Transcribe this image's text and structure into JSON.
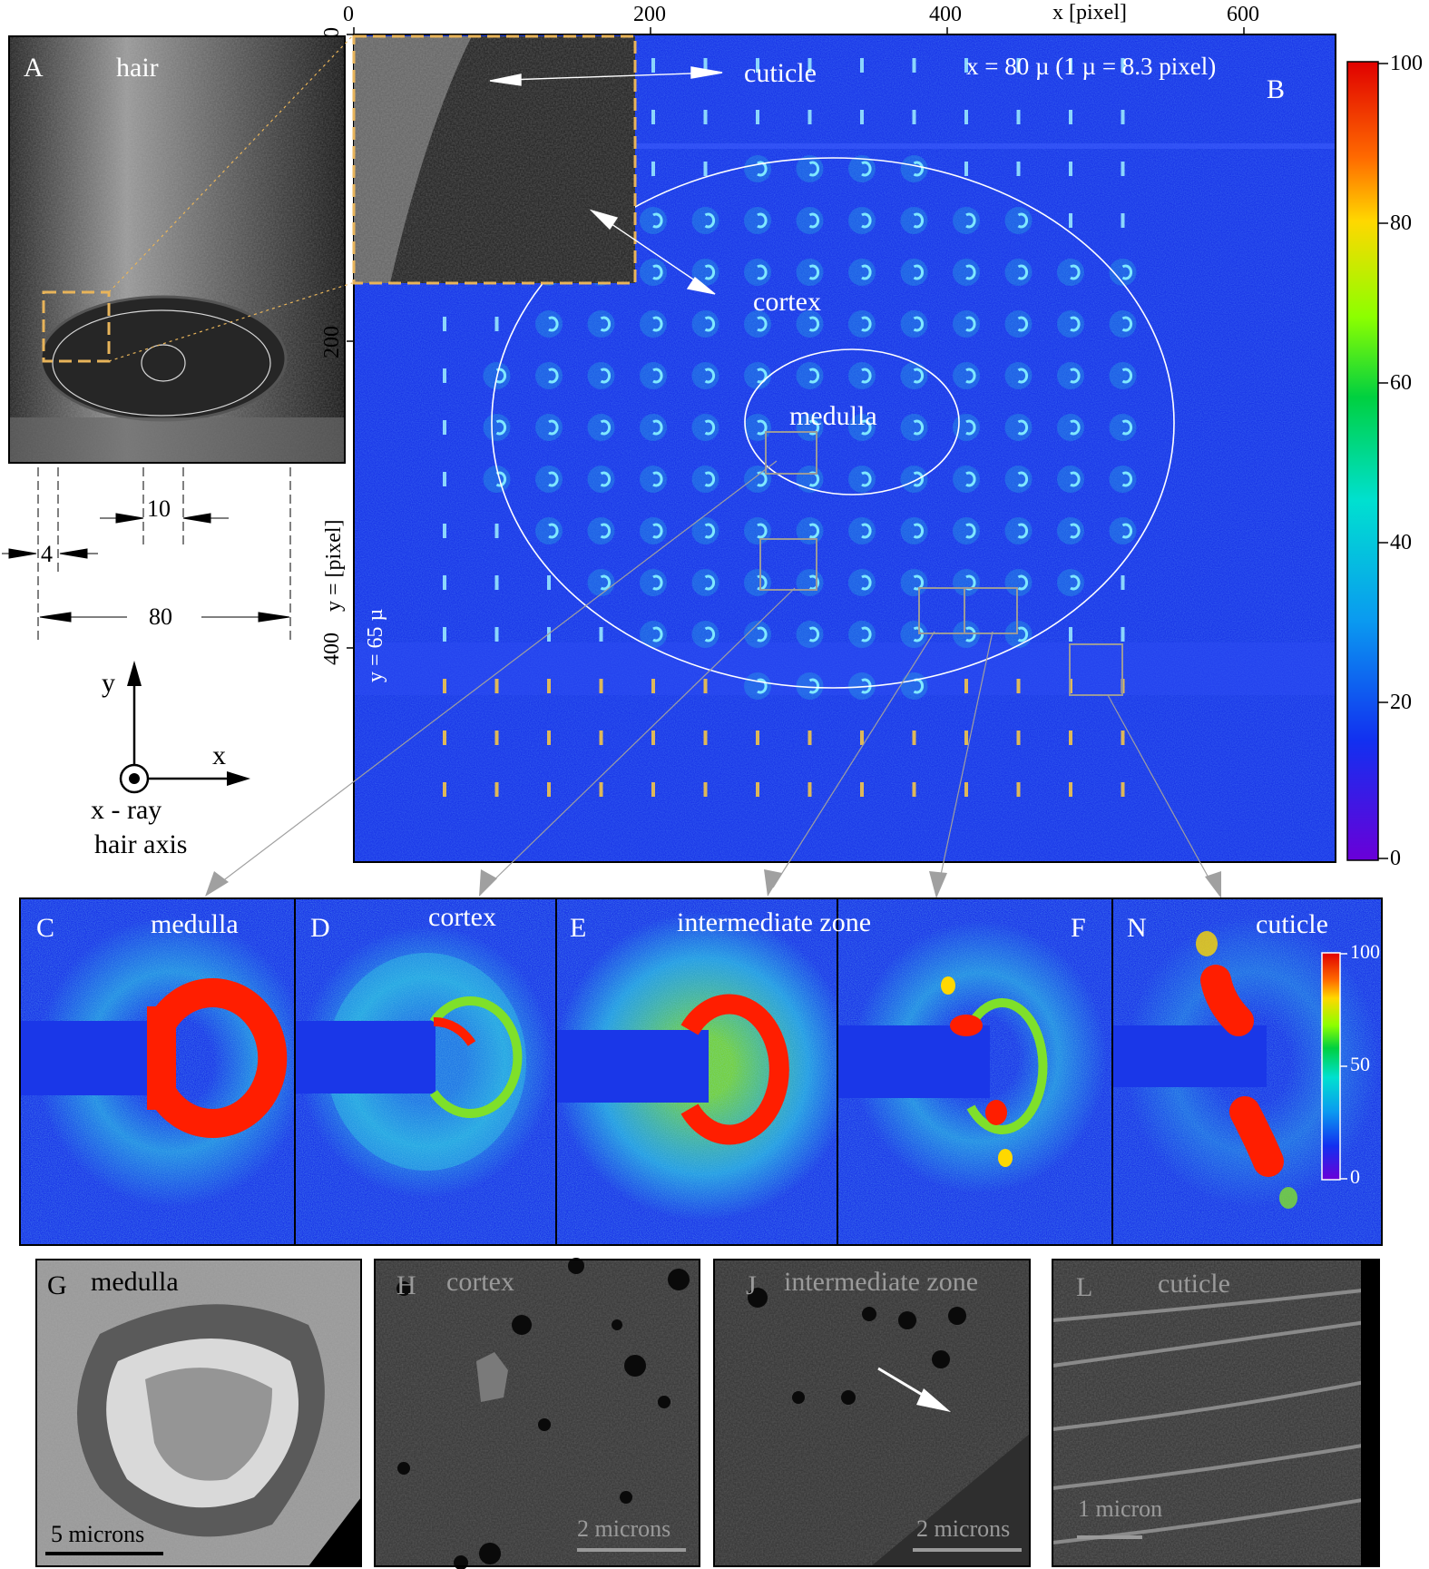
{
  "panel_A": {
    "letter": "A",
    "title": "hair",
    "dimensions": {
      "inner": "10",
      "shell": "4",
      "total": "80"
    },
    "axes": {
      "y": "y",
      "x": "x",
      "caption_line1": "x - ray",
      "caption_line2": "hair axis"
    }
  },
  "panel_B": {
    "letter": "B",
    "scale_note": "x = 80 µ (1 µ = 8.3 pixel)",
    "y_note": "y = 65 µ",
    "labels": {
      "cuticle": "cuticle",
      "cortex": "cortex",
      "medulla": "medulla"
    },
    "x_axis": {
      "label": "x [pixel]",
      "ticks": [
        "0",
        "200",
        "400",
        "600"
      ]
    },
    "y_axis": {
      "label": "y = [pixel]",
      "ticks": [
        "0",
        "200",
        "400"
      ]
    },
    "colorbar_ticks": [
      "100",
      "80",
      "60",
      "40",
      "20",
      "0"
    ]
  },
  "diffraction_panels": [
    {
      "letter": "C",
      "title": "medulla"
    },
    {
      "letter": "D",
      "title": "cortex"
    },
    {
      "letter": "E",
      "title": "intermediate zone"
    },
    {
      "letter": "F",
      "title": ""
    },
    {
      "letter": "N",
      "title": "cuticle"
    }
  ],
  "small_colorbar_ticks": [
    "100",
    "50",
    "0"
  ],
  "sem_panels": [
    {
      "letter": "G",
      "title": "medulla",
      "scale": "5 microns"
    },
    {
      "letter": "H",
      "title": "cortex",
      "scale": "2 microns"
    },
    {
      "letter": "J",
      "title": "intermediate zone",
      "scale": "2 microns"
    },
    {
      "letter": "L",
      "title": "cuticle",
      "scale": "1 micron"
    }
  ],
  "colors": {
    "map_blue": "#1a37e8",
    "ring_cyan": "#27c6e0",
    "hot_red": "#ff1e00",
    "accent_dashed": "#e8b45a"
  }
}
